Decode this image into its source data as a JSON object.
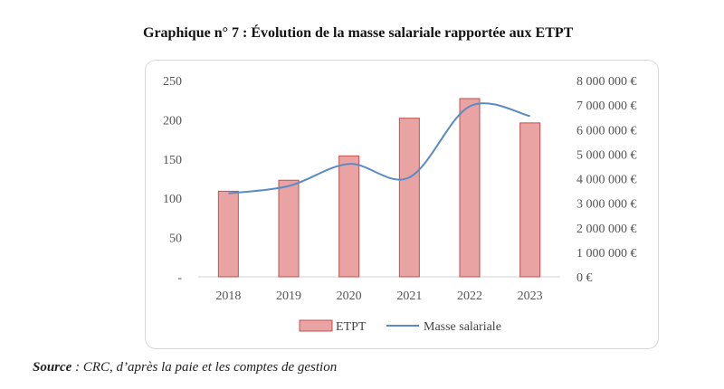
{
  "title": "Graphique n° 7 :  Évolution de la masse salariale rapportée aux ETPT",
  "source": {
    "label": "Source",
    "text": " : CRC, d’après la paie et les comptes de gestion"
  },
  "colors": {
    "bar_fill": "#e9a3a3",
    "bar_stroke": "#c0504d",
    "line": "#5b8bc4",
    "grid": "#e6e6e6"
  },
  "chart_data": {
    "type": "bar",
    "categories": [
      "2018",
      "2019",
      "2020",
      "2021",
      "2022",
      "2023"
    ],
    "series": [
      {
        "name": "ETPT",
        "type": "bar",
        "axis": "left",
        "values": [
          109,
          123,
          154,
          202,
          227,
          196
        ]
      },
      {
        "name": "Masse salariale",
        "type": "line",
        "axis": "right",
        "smooth": true,
        "values": [
          3400000,
          3700000,
          4600000,
          4050000,
          6950000,
          6550000
        ]
      }
    ],
    "y_left": {
      "ylim": [
        0,
        250
      ],
      "ticks": [
        0,
        50,
        100,
        150,
        200,
        250
      ],
      "tick_labels": [
        "-",
        "50",
        "100",
        "150",
        "200",
        "250"
      ]
    },
    "y_right": {
      "ylim": [
        0,
        8000000
      ],
      "ticks": [
        0,
        1000000,
        2000000,
        3000000,
        4000000,
        5000000,
        6000000,
        7000000,
        8000000
      ],
      "tick_labels": [
        "0 €",
        "1 000 000 €",
        "2 000 000 €",
        "3 000 000 €",
        "4 000 000 €",
        "5 000 000 €",
        "6 000 000 €",
        "7 000 000 €",
        "8 000 000 €"
      ]
    },
    "grid": false,
    "legend": "bottom"
  }
}
